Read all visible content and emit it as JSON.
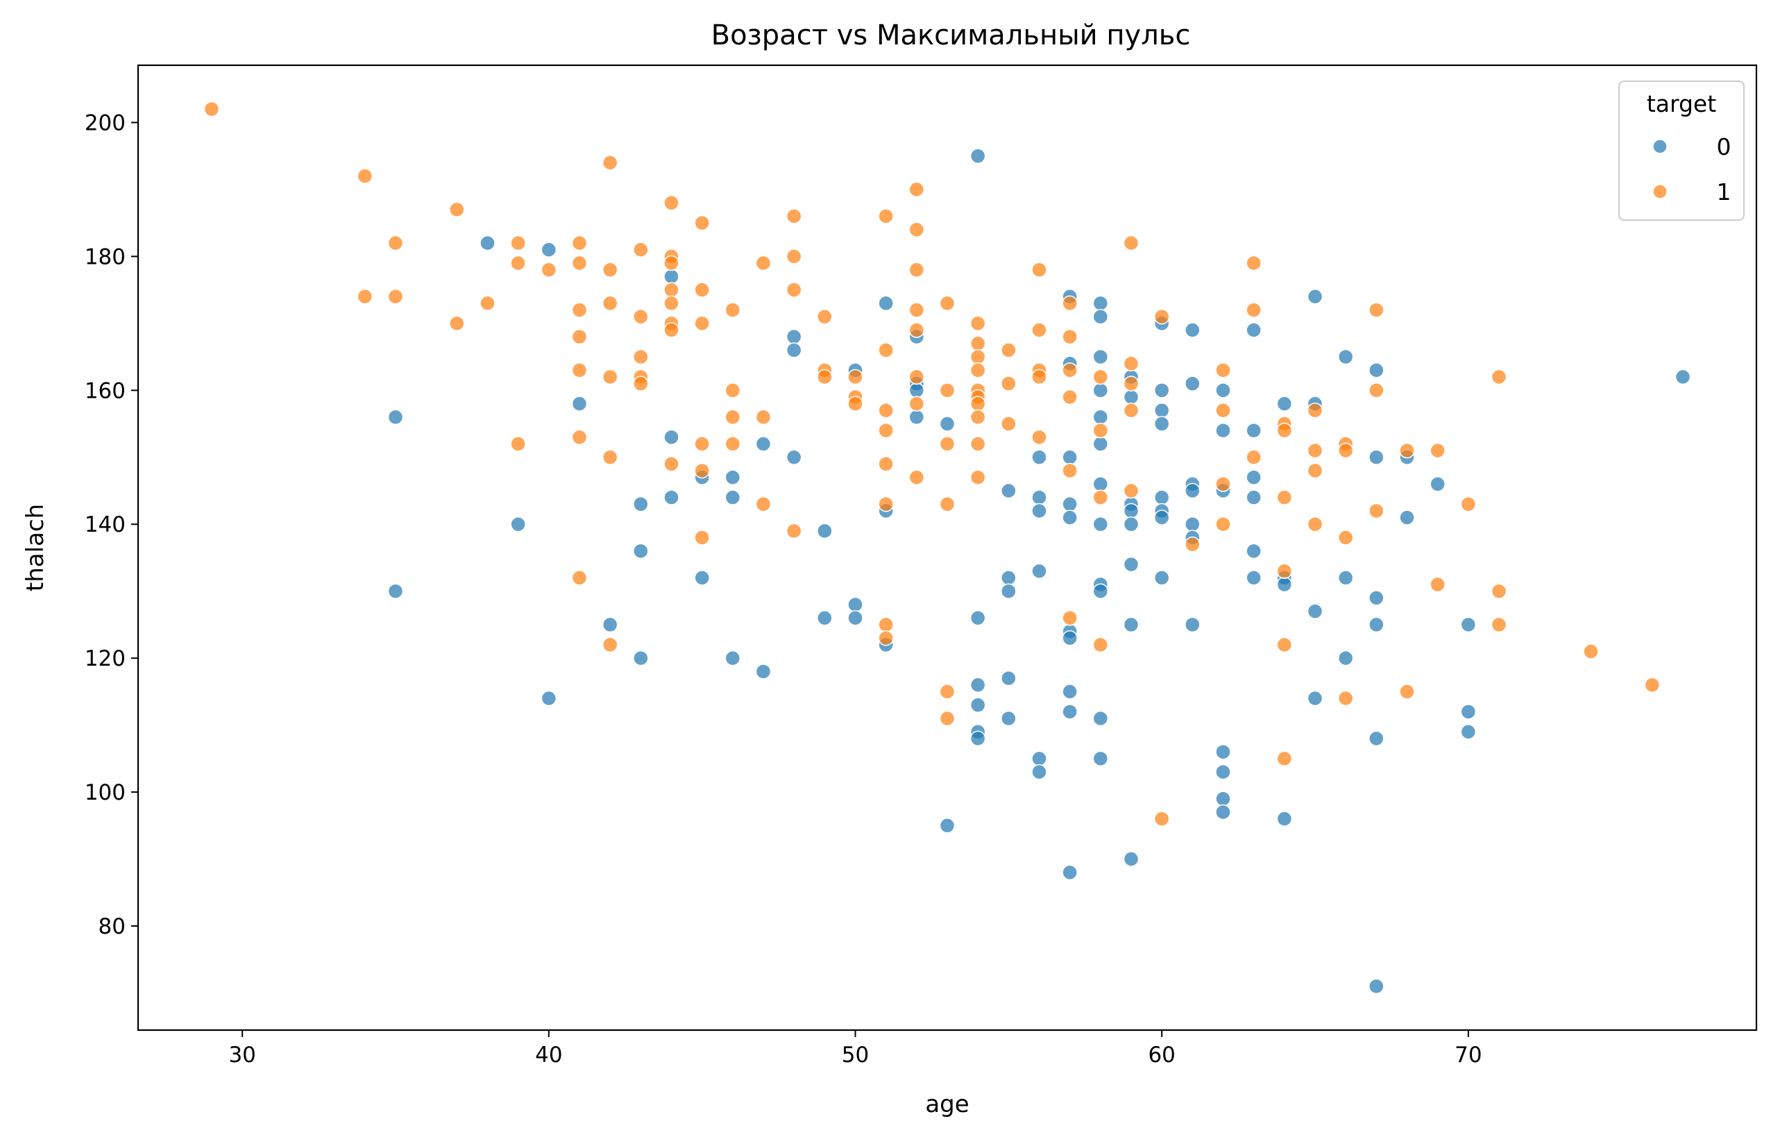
{
  "chart_data": {
    "type": "scatter",
    "title": "Возраст vs Максимальный пульс",
    "xlabel": "age",
    "ylabel": "thalach",
    "xlim": [
      26.6,
      79.4
    ],
    "ylim": [
      64.45,
      208.55
    ],
    "xticks": [
      30,
      40,
      50,
      60,
      70
    ],
    "yticks": [
      80,
      100,
      120,
      140,
      160,
      180,
      200
    ],
    "grid": false,
    "legend": {
      "title": "target",
      "placement": "top-right"
    },
    "series": [
      {
        "name": "0",
        "color": "#1f77b4",
        "points": [
          [
            35,
            156
          ],
          [
            35,
            130
          ],
          [
            38,
            182
          ],
          [
            39,
            140
          ],
          [
            40,
            181
          ],
          [
            40,
            114
          ],
          [
            41,
            158
          ],
          [
            42,
            125
          ],
          [
            43,
            143
          ],
          [
            43,
            136
          ],
          [
            43,
            120
          ],
          [
            44,
            177
          ],
          [
            44,
            153
          ],
          [
            44,
            144
          ],
          [
            45,
            147
          ],
          [
            45,
            132
          ],
          [
            46,
            147
          ],
          [
            46,
            144
          ],
          [
            46,
            120
          ],
          [
            47,
            152
          ],
          [
            47,
            118
          ],
          [
            48,
            168
          ],
          [
            48,
            166
          ],
          [
            48,
            150
          ],
          [
            49,
            139
          ],
          [
            49,
            126
          ],
          [
            50,
            163
          ],
          [
            50,
            128
          ],
          [
            50,
            126
          ],
          [
            51,
            173
          ],
          [
            51,
            142
          ],
          [
            51,
            122
          ],
          [
            52,
            168
          ],
          [
            52,
            161
          ],
          [
            52,
            160
          ],
          [
            52,
            156
          ],
          [
            53,
            155
          ],
          [
            53,
            95
          ],
          [
            54,
            195
          ],
          [
            54,
            126
          ],
          [
            54,
            116
          ],
          [
            54,
            113
          ],
          [
            54,
            109
          ],
          [
            54,
            108
          ],
          [
            55,
            145
          ],
          [
            55,
            132
          ],
          [
            55,
            130
          ],
          [
            55,
            117
          ],
          [
            55,
            111
          ],
          [
            56,
            150
          ],
          [
            56,
            144
          ],
          [
            56,
            142
          ],
          [
            56,
            133
          ],
          [
            56,
            105
          ],
          [
            56,
            103
          ],
          [
            57,
            174
          ],
          [
            57,
            164
          ],
          [
            57,
            150
          ],
          [
            57,
            143
          ],
          [
            57,
            141
          ],
          [
            57,
            124
          ],
          [
            57,
            123
          ],
          [
            57,
            115
          ],
          [
            57,
            112
          ],
          [
            57,
            88
          ],
          [
            58,
            173
          ],
          [
            58,
            171
          ],
          [
            58,
            165
          ],
          [
            58,
            160
          ],
          [
            58,
            156
          ],
          [
            58,
            152
          ],
          [
            58,
            146
          ],
          [
            58,
            140
          ],
          [
            58,
            131
          ],
          [
            58,
            130
          ],
          [
            58,
            111
          ],
          [
            58,
            105
          ],
          [
            59,
            162
          ],
          [
            59,
            159
          ],
          [
            59,
            143
          ],
          [
            59,
            142
          ],
          [
            59,
            140
          ],
          [
            59,
            134
          ],
          [
            59,
            125
          ],
          [
            59,
            90
          ],
          [
            60,
            170
          ],
          [
            60,
            160
          ],
          [
            60,
            157
          ],
          [
            60,
            155
          ],
          [
            60,
            144
          ],
          [
            60,
            142
          ],
          [
            60,
            141
          ],
          [
            60,
            132
          ],
          [
            61,
            169
          ],
          [
            61,
            161
          ],
          [
            61,
            146
          ],
          [
            61,
            145
          ],
          [
            61,
            140
          ],
          [
            61,
            138
          ],
          [
            61,
            125
          ],
          [
            62,
            160
          ],
          [
            62,
            154
          ],
          [
            62,
            145
          ],
          [
            62,
            106
          ],
          [
            62,
            103
          ],
          [
            62,
            99
          ],
          [
            62,
            97
          ],
          [
            63,
            169
          ],
          [
            63,
            154
          ],
          [
            63,
            147
          ],
          [
            63,
            144
          ],
          [
            63,
            136
          ],
          [
            63,
            132
          ],
          [
            64,
            158
          ],
          [
            64,
            132
          ],
          [
            64,
            131
          ],
          [
            64,
            96
          ],
          [
            65,
            174
          ],
          [
            65,
            158
          ],
          [
            65,
            127
          ],
          [
            65,
            114
          ],
          [
            66,
            165
          ],
          [
            66,
            132
          ],
          [
            66,
            120
          ],
          [
            67,
            163
          ],
          [
            67,
            150
          ],
          [
            67,
            129
          ],
          [
            67,
            125
          ],
          [
            67,
            108
          ],
          [
            67,
            71
          ],
          [
            68,
            150
          ],
          [
            68,
            141
          ],
          [
            69,
            146
          ],
          [
            70,
            125
          ],
          [
            70,
            112
          ],
          [
            70,
            109
          ],
          [
            77,
            162
          ]
        ]
      },
      {
        "name": "1",
        "color": "#ff7f0e",
        "points": [
          [
            29,
            202
          ],
          [
            34,
            192
          ],
          [
            34,
            174
          ],
          [
            35,
            182
          ],
          [
            35,
            174
          ],
          [
            37,
            187
          ],
          [
            37,
            170
          ],
          [
            38,
            173
          ],
          [
            39,
            182
          ],
          [
            39,
            179
          ],
          [
            39,
            152
          ],
          [
            40,
            178
          ],
          [
            41,
            182
          ],
          [
            41,
            179
          ],
          [
            41,
            172
          ],
          [
            41,
            168
          ],
          [
            41,
            163
          ],
          [
            41,
            153
          ],
          [
            41,
            132
          ],
          [
            42,
            194
          ],
          [
            42,
            178
          ],
          [
            42,
            173
          ],
          [
            42,
            162
          ],
          [
            42,
            150
          ],
          [
            42,
            122
          ],
          [
            43,
            181
          ],
          [
            43,
            171
          ],
          [
            43,
            165
          ],
          [
            43,
            162
          ],
          [
            43,
            161
          ],
          [
            44,
            188
          ],
          [
            44,
            180
          ],
          [
            44,
            179
          ],
          [
            44,
            175
          ],
          [
            44,
            173
          ],
          [
            44,
            170
          ],
          [
            44,
            169
          ],
          [
            44,
            149
          ],
          [
            45,
            185
          ],
          [
            45,
            175
          ],
          [
            45,
            170
          ],
          [
            45,
            152
          ],
          [
            45,
            148
          ],
          [
            45,
            138
          ],
          [
            46,
            172
          ],
          [
            46,
            160
          ],
          [
            46,
            156
          ],
          [
            46,
            152
          ],
          [
            47,
            179
          ],
          [
            47,
            156
          ],
          [
            47,
            143
          ],
          [
            48,
            186
          ],
          [
            48,
            180
          ],
          [
            48,
            175
          ],
          [
            48,
            139
          ],
          [
            49,
            171
          ],
          [
            49,
            163
          ],
          [
            49,
            162
          ],
          [
            50,
            162
          ],
          [
            50,
            159
          ],
          [
            50,
            158
          ],
          [
            51,
            186
          ],
          [
            51,
            166
          ],
          [
            51,
            157
          ],
          [
            51,
            154
          ],
          [
            51,
            149
          ],
          [
            51,
            143
          ],
          [
            51,
            125
          ],
          [
            51,
            123
          ],
          [
            52,
            190
          ],
          [
            52,
            184
          ],
          [
            52,
            178
          ],
          [
            52,
            172
          ],
          [
            52,
            169
          ],
          [
            52,
            162
          ],
          [
            52,
            158
          ],
          [
            52,
            147
          ],
          [
            53,
            173
          ],
          [
            53,
            160
          ],
          [
            53,
            152
          ],
          [
            53,
            143
          ],
          [
            53,
            115
          ],
          [
            53,
            111
          ],
          [
            54,
            170
          ],
          [
            54,
            167
          ],
          [
            54,
            165
          ],
          [
            54,
            163
          ],
          [
            54,
            160
          ],
          [
            54,
            159
          ],
          [
            54,
            158
          ],
          [
            54,
            156
          ],
          [
            54,
            152
          ],
          [
            54,
            147
          ],
          [
            55,
            166
          ],
          [
            55,
            161
          ],
          [
            55,
            155
          ],
          [
            56,
            178
          ],
          [
            56,
            169
          ],
          [
            56,
            163
          ],
          [
            56,
            162
          ],
          [
            56,
            153
          ],
          [
            57,
            173
          ],
          [
            57,
            168
          ],
          [
            57,
            163
          ],
          [
            57,
            159
          ],
          [
            57,
            148
          ],
          [
            57,
            126
          ],
          [
            58,
            162
          ],
          [
            58,
            154
          ],
          [
            58,
            144
          ],
          [
            58,
            122
          ],
          [
            59,
            182
          ],
          [
            59,
            164
          ],
          [
            59,
            161
          ],
          [
            59,
            157
          ],
          [
            59,
            145
          ],
          [
            60,
            171
          ],
          [
            60,
            96
          ],
          [
            61,
            137
          ],
          [
            62,
            163
          ],
          [
            62,
            157
          ],
          [
            62,
            146
          ],
          [
            62,
            140
          ],
          [
            63,
            179
          ],
          [
            63,
            172
          ],
          [
            63,
            150
          ],
          [
            64,
            155
          ],
          [
            64,
            154
          ],
          [
            64,
            144
          ],
          [
            64,
            133
          ],
          [
            64,
            122
          ],
          [
            64,
            105
          ],
          [
            65,
            157
          ],
          [
            65,
            151
          ],
          [
            65,
            148
          ],
          [
            65,
            140
          ],
          [
            66,
            152
          ],
          [
            66,
            151
          ],
          [
            66,
            138
          ],
          [
            66,
            114
          ],
          [
            67,
            172
          ],
          [
            67,
            160
          ],
          [
            67,
            142
          ],
          [
            68,
            151
          ],
          [
            68,
            115
          ],
          [
            69,
            151
          ],
          [
            69,
            131
          ],
          [
            70,
            143
          ],
          [
            71,
            162
          ],
          [
            71,
            130
          ],
          [
            71,
            125
          ],
          [
            74,
            121
          ],
          [
            76,
            116
          ]
        ]
      }
    ]
  }
}
